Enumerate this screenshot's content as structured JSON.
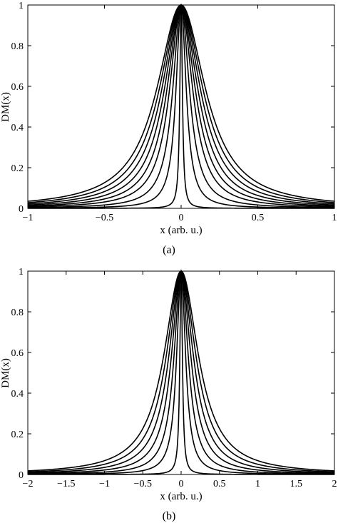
{
  "chart_data": [
    {
      "type": "line",
      "panel_label": "(a)",
      "xlabel": "x (arb. u.)",
      "ylabel": "DM(x)",
      "xlim": [
        -1,
        1
      ],
      "ylim": [
        0,
        1
      ],
      "x_ticks": [
        -1,
        -0.5,
        0,
        0.5,
        1
      ],
      "x_tick_labels": [
        "−1",
        "−0.5",
        "0",
        "0.5",
        "1"
      ],
      "y_ticks": [
        0,
        0.2,
        0.4,
        0.6,
        0.8,
        1
      ],
      "y_tick_labels": [
        "0",
        "0.2",
        "0.4",
        "0.6",
        "0.8",
        "1"
      ],
      "curve_shape": "lorentzian",
      "series_half_widths": [
        0.01,
        0.04,
        0.065,
        0.09,
        0.11,
        0.13,
        0.15,
        0.17,
        0.19
      ],
      "peak_value": 1
    },
    {
      "type": "line",
      "panel_label": "(b)",
      "xlabel": "x (arb. u.)",
      "ylabel": "DM(x)",
      "xlim": [
        -2,
        2
      ],
      "ylim": [
        0,
        1
      ],
      "x_ticks": [
        -2,
        -1.5,
        -1,
        -0.5,
        0,
        0.5,
        1,
        1.5,
        2
      ],
      "x_tick_labels": [
        "−2",
        "−1.5",
        "−1",
        "−0.5",
        "0",
        "0.5",
        "1",
        "1.5",
        "2"
      ],
      "y_ticks": [
        0,
        0.2,
        0.4,
        0.6,
        0.8,
        1
      ],
      "y_tick_labels": [
        "0",
        "0.2",
        "0.4",
        "0.6",
        "0.8",
        "1"
      ],
      "curve_shape": "lorentzian",
      "series_half_widths": [
        0.02,
        0.07,
        0.11,
        0.15,
        0.19,
        0.23,
        0.27
      ],
      "peak_value": 1
    }
  ]
}
